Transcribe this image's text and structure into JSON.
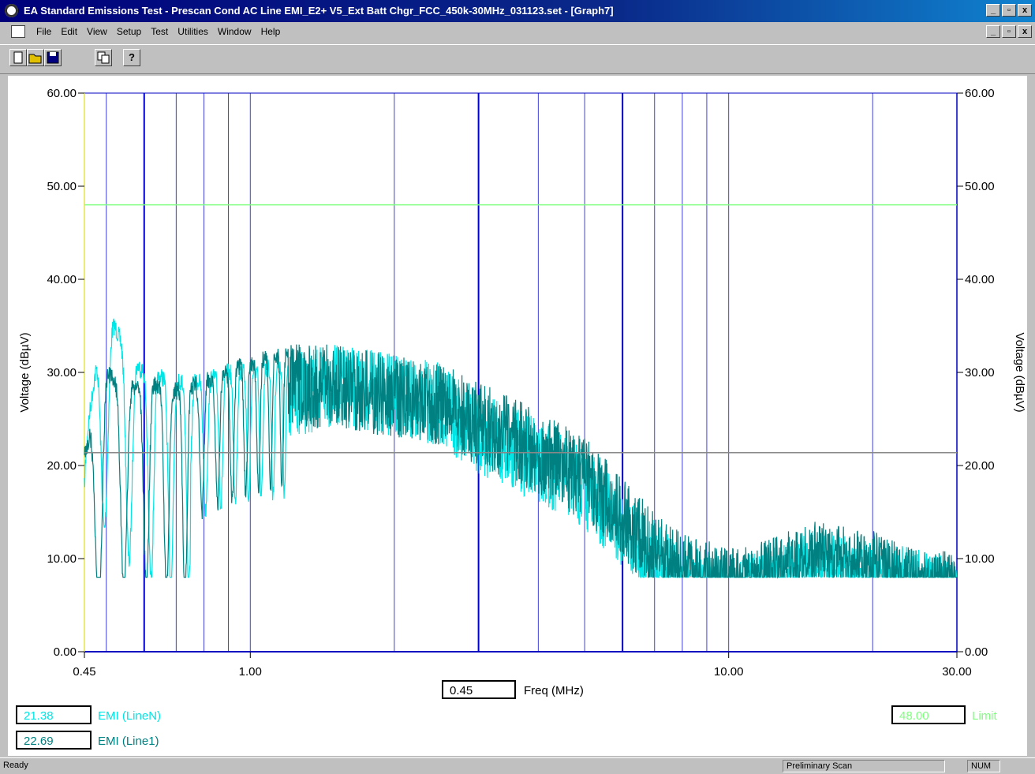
{
  "window": {
    "title": "EA Standard Emissions Test - Prescan Cond AC Line EMI_E2+ V5_Ext Batt Chgr_FCC_450k-30MHz_031123.set - [Graph7]",
    "controls": [
      "_",
      "▫",
      "x"
    ]
  },
  "menu": {
    "items": [
      "File",
      "Edit",
      "View",
      "Setup",
      "Test",
      "Utilities",
      "Window",
      "Help"
    ]
  },
  "toolbar": {
    "buttons": [
      "new-icon",
      "open-icon",
      "save-icon",
      "copy-icon",
      "help-icon"
    ]
  },
  "readouts": {
    "freq_value": "0.45",
    "freq_label": "Freq (MHz)",
    "lineN_value": "21.38",
    "lineN_label": "EMI (LineN)",
    "line1_value": "22.69",
    "line1_label": "EMI (Line1)",
    "limit_value": "48.00",
    "limit_label": "Limit"
  },
  "status": {
    "ready": "Ready",
    "mode": "Preliminary Scan",
    "num": "NUM"
  },
  "colors": {
    "lineN": "#00e5e5",
    "line1": "#008080",
    "limit": "#80ff80",
    "marker": "#888888",
    "grid": "#0000d0",
    "axis": "#0000c0"
  },
  "chart_data": {
    "type": "line",
    "xlabel": "Freq (MHz)",
    "ylabel": "Voltage (dBµV)",
    "x_scale": "log",
    "xlim": [
      0.45,
      30.0
    ],
    "ylim": [
      0,
      60
    ],
    "x_ticks": [
      "0.45",
      "1.00",
      "10.00",
      "30.00"
    ],
    "y_ticks": [
      "0.00",
      "10.00",
      "20.00",
      "30.00",
      "40.00",
      "50.00",
      "60.00"
    ],
    "vertical_markers_mhz": [
      0.5,
      0.6,
      0.7,
      0.8,
      0.9,
      1.0,
      2.0,
      3.0,
      4.0,
      5.0,
      6.0,
      7.0,
      8.0,
      9.0,
      10.0,
      20.0
    ],
    "limit_dbuv": 48.0,
    "marker_dbuv": 21.38,
    "series": [
      {
        "name": "EMI (LineN)",
        "envelope_x": [
          0.45,
          0.46,
          0.48,
          0.5,
          0.52,
          0.55,
          0.6,
          0.7,
          0.8,
          0.9,
          1.0,
          1.2,
          1.5,
          2.0,
          2.5,
          3.0,
          4.0,
          5.0,
          6.0,
          7.0,
          8.0,
          9.0,
          10.0,
          12.0,
          15.0,
          20.0,
          25.0,
          30.0
        ],
        "envelope_y": [
          21,
          26,
          33,
          37,
          36,
          33,
          31,
          30,
          30,
          31,
          31,
          32,
          33,
          32,
          31,
          28,
          25,
          22,
          18,
          14,
          12,
          11,
          10,
          11,
          13,
          12,
          11,
          10
        ]
      },
      {
        "name": "EMI (Line1)",
        "envelope_x": [
          0.45,
          0.46,
          0.48,
          0.5,
          0.52,
          0.55,
          0.6,
          0.7,
          0.8,
          0.9,
          1.0,
          1.2,
          1.5,
          2.0,
          2.5,
          3.0,
          4.0,
          5.0,
          6.0,
          7.0,
          8.0,
          9.0,
          10.0,
          12.0,
          15.0,
          20.0,
          25.0,
          30.0
        ],
        "envelope_y": [
          22,
          24,
          28,
          31,
          30,
          29,
          30,
          29,
          30,
          31,
          32,
          33,
          33,
          32,
          31,
          29,
          26,
          23,
          19,
          15,
          13,
          12,
          11,
          12,
          14,
          13,
          11,
          11
        ]
      }
    ]
  }
}
